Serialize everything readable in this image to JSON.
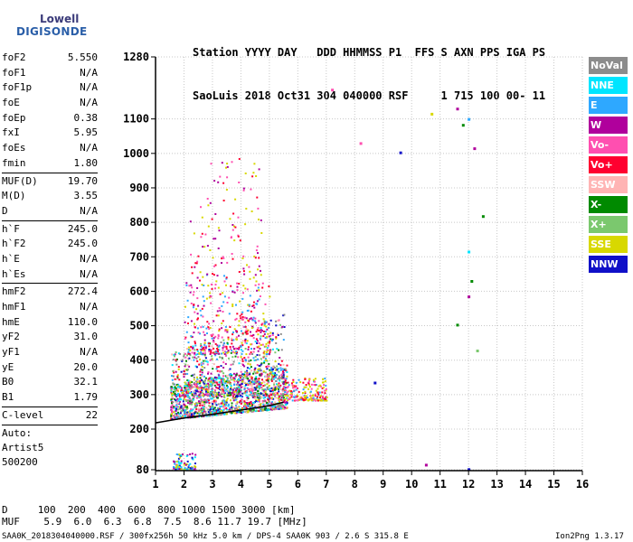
{
  "logo": {
    "top": "Lowell",
    "bottom": "DIGISONDE"
  },
  "header": {
    "line1": "Station YYYY DAY   DDD HHMMSS P1  FFS S AXN PPS IGA PS",
    "line2": "SaoLuis 2018 Oct31 304 040000 RSF     1 715 100 00- 11"
  },
  "params": [
    {
      "label": "foF2",
      "value": "5.550"
    },
    {
      "label": "foF1",
      "value": "N/A"
    },
    {
      "label": "foF1p",
      "value": "N/A"
    },
    {
      "label": "foE",
      "value": "N/A"
    },
    {
      "label": "foEp",
      "value": "0.38"
    },
    {
      "label": "fxI",
      "value": "5.95"
    },
    {
      "label": "foEs",
      "value": "N/A"
    },
    {
      "label": "fmin",
      "value": "1.80"
    },
    {
      "sep": true
    },
    {
      "label": "MUF(D)",
      "value": "19.70"
    },
    {
      "label": "M(D)",
      "value": "3.55"
    },
    {
      "label": "D",
      "value": "N/A"
    },
    {
      "sep": true
    },
    {
      "label": "h`F",
      "value": "245.0"
    },
    {
      "label": "h`F2",
      "value": "245.0"
    },
    {
      "label": "h`E",
      "value": "N/A"
    },
    {
      "label": "h`Es",
      "value": "N/A"
    },
    {
      "sep": true
    },
    {
      "label": "hmF2",
      "value": "272.4"
    },
    {
      "label": "hmF1",
      "value": "N/A"
    },
    {
      "label": "hmE",
      "value": "110.0"
    },
    {
      "label": "yF2",
      "value": "31.0"
    },
    {
      "label": "yF1",
      "value": "N/A"
    },
    {
      "label": "yE",
      "value": "20.0"
    },
    {
      "label": "B0",
      "value": "32.1"
    },
    {
      "label": "B1",
      "value": "1.79"
    },
    {
      "sep": true
    },
    {
      "label": "C-level",
      "value": "22"
    },
    {
      "sep": true
    },
    {
      "text": "Auto:"
    },
    {
      "text": "Artist5"
    },
    {
      "text": "500200"
    }
  ],
  "legend": [
    {
      "label": "NoVal",
      "bg": "#8c8c8c",
      "fg": "#ffffff"
    },
    {
      "label": "NNE",
      "bg": "#00e5ff",
      "fg": "#ffffff"
    },
    {
      "label": "E",
      "bg": "#2ea8ff",
      "fg": "#ffffff"
    },
    {
      "label": "W",
      "bg": "#b0009c",
      "fg": "#ffffff"
    },
    {
      "label": "Vo-",
      "bg": "#ff4fb0",
      "fg": "#ffffff"
    },
    {
      "label": "Vo+",
      "bg": "#ff0030",
      "fg": "#ffffff"
    },
    {
      "label": "SSW",
      "bg": "#ffb4b4",
      "fg": "#ffffff"
    },
    {
      "label": "X-",
      "bg": "#008a00",
      "fg": "#ffffff"
    },
    {
      "label": "X+",
      "bg": "#7bc86e",
      "fg": "#ffffff"
    },
    {
      "label": "SSE",
      "bg": "#d8d800",
      "fg": "#ffffff"
    },
    {
      "label": "NNW",
      "bg": "#1010c8",
      "fg": "#ffffff"
    }
  ],
  "chart_data": {
    "type": "scatter",
    "title": "",
    "xlabel": "",
    "ylabel": "",
    "xlim": [
      1,
      16
    ],
    "ylim": [
      80,
      1280
    ],
    "x_ticks": [
      1,
      2,
      3,
      4,
      5,
      6,
      7,
      8,
      9,
      10,
      11,
      12,
      13,
      14,
      15,
      16
    ],
    "y_ticks": [
      80,
      200,
      300,
      400,
      500,
      600,
      700,
      800,
      900,
      1000,
      1100,
      1280
    ],
    "grid": true,
    "legend_position": "right",
    "trace": [
      [
        1.0,
        218
      ],
      [
        2.0,
        232
      ],
      [
        3.0,
        243
      ],
      [
        4.0,
        255
      ],
      [
        5.0,
        268
      ],
      [
        5.5,
        278
      ]
    ],
    "isolated_points": [
      {
        "x": 9.6,
        "y": 1003,
        "color": "#1010c8"
      },
      {
        "x": 11.8,
        "y": 1083,
        "color": "#008a00"
      },
      {
        "x": 11.6,
        "y": 1130,
        "color": "#b0009c"
      },
      {
        "x": 12.0,
        "y": 1100,
        "color": "#2ea8ff"
      },
      {
        "x": 12.2,
        "y": 1015,
        "color": "#b0009c"
      },
      {
        "x": 12.5,
        "y": 818,
        "color": "#008a00"
      },
      {
        "x": 12.0,
        "y": 715,
        "color": "#00e5ff"
      },
      {
        "x": 12.1,
        "y": 630,
        "color": "#008a00"
      },
      {
        "x": 12.0,
        "y": 585,
        "color": "#b0009c"
      },
      {
        "x": 11.6,
        "y": 503,
        "color": "#008a00"
      },
      {
        "x": 12.3,
        "y": 428,
        "color": "#7bc86e"
      },
      {
        "x": 8.7,
        "y": 335,
        "color": "#1010c8"
      },
      {
        "x": 10.5,
        "y": 95,
        "color": "#b0009c"
      },
      {
        "x": 12.0,
        "y": 82,
        "color": "#1010c8"
      },
      {
        "x": 8.2,
        "y": 1030,
        "color": "#ff4fb0"
      },
      {
        "x": 7.2,
        "y": 1185,
        "color": "#ff4fb0"
      },
      {
        "x": 10.7,
        "y": 1115,
        "color": "#d8d800"
      }
    ]
  },
  "footer": {
    "d_row": "D     100  200  400  600  800 1000 1500 3000 [km]",
    "muf_row": "MUF    5.9  6.0  6.3  6.8  7.5  8.6 11.7 19.7 [MHz]",
    "info": "SAA0K_2018304040000.RSF / 300fx256h 50 kHz 5.0 km / DPS-4 SAA0K 903 / 2.6 S 315.8 E",
    "version": "Ion2Png 1.3.17"
  }
}
